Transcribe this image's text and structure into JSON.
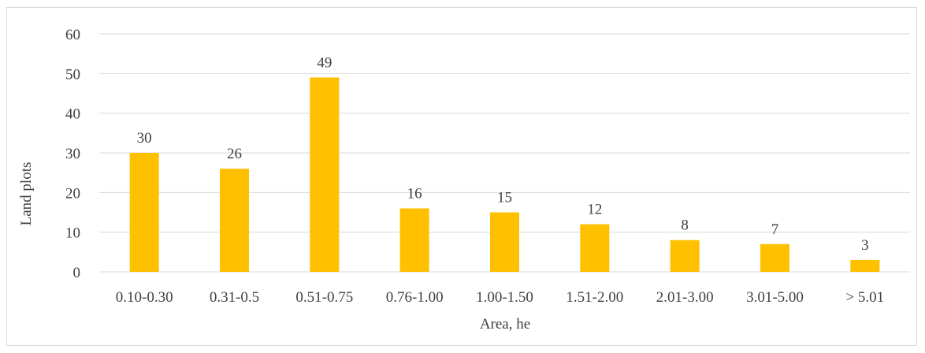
{
  "chart_data": {
    "type": "bar",
    "categories": [
      "0.10-0.30",
      "0.31-0.5",
      "0.51-0.75",
      "0.76-1.00",
      "1.00-1.50",
      "1.51-2.00",
      "2.01-3.00",
      "3.01-5.00",
      "> 5.01"
    ],
    "values": [
      30,
      26,
      49,
      16,
      15,
      12,
      8,
      7,
      3
    ],
    "title": "",
    "xlabel": "Area, he",
    "ylabel": "Land plots",
    "ylim": [
      0,
      60
    ],
    "yticks": [
      0,
      10,
      20,
      30,
      40,
      50,
      60
    ],
    "grid": true,
    "legend": "none",
    "bar_color": "#ffc000",
    "data_labels": true
  }
}
